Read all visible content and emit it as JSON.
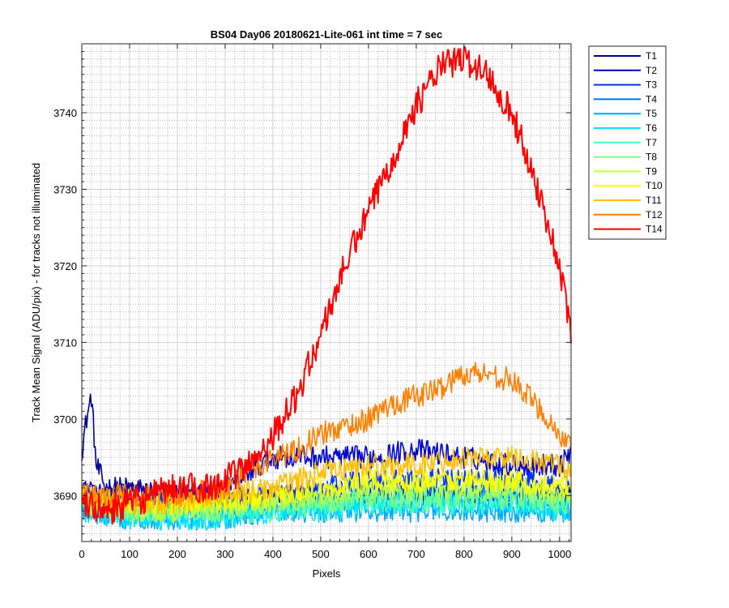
{
  "chart_data": {
    "type": "line",
    "title": "BS04 Day06 20180621-Lite-061 int time = 7 sec",
    "xlabel": "Pixels",
    "ylabel": "Track Mean Signal (ADU/pix) - for tracks not illuminated",
    "xlim": [
      0,
      1024
    ],
    "ylim": [
      3684,
      3749
    ],
    "x_ticks": [
      0,
      100,
      200,
      300,
      400,
      500,
      600,
      700,
      800,
      900,
      1000
    ],
    "y_ticks": [
      3690,
      3700,
      3710,
      3720,
      3730,
      3740
    ],
    "grid": "on (major + minor)",
    "legend_position": "outside-right",
    "series": [
      {
        "name": "T1",
        "color": "#00008F",
        "x": [
          0,
          10,
          20,
          30,
          50,
          100,
          200,
          300,
          400,
          500,
          600,
          700,
          800,
          900,
          1000,
          1024
        ],
        "y": [
          3696,
          3700,
          3703,
          3694,
          3691,
          3691,
          3690,
          3690,
          3690,
          3690,
          3690,
          3690,
          3690,
          3690,
          3690,
          3690
        ]
      },
      {
        "name": "T2",
        "color": "#0000CC",
        "x": [
          0,
          50,
          100,
          200,
          300,
          350,
          400,
          500,
          600,
          700,
          800,
          900,
          1000,
          1024
        ],
        "y": [
          3691,
          3690,
          3690,
          3690,
          3691,
          3693,
          3695,
          3695,
          3695,
          3696,
          3695,
          3694,
          3694,
          3696
        ]
      },
      {
        "name": "T3",
        "color": "#0033FF",
        "x": [
          0,
          100,
          200,
          300,
          400,
          500,
          600,
          700,
          800,
          900,
          1000,
          1024
        ],
        "y": [
          3690,
          3689,
          3689,
          3689,
          3690,
          3691,
          3692,
          3692,
          3692,
          3692,
          3691,
          3691
        ]
      },
      {
        "name": "T4",
        "color": "#0070FF",
        "x": [
          0,
          100,
          200,
          300,
          400,
          500,
          600,
          700,
          800,
          900,
          1000,
          1024
        ],
        "y": [
          3689,
          3688,
          3688,
          3688,
          3689,
          3689,
          3690,
          3690,
          3690,
          3690,
          3689,
          3689
        ]
      },
      {
        "name": "T5",
        "color": "#00AAFF",
        "x": [
          0,
          100,
          200,
          300,
          400,
          500,
          600,
          700,
          800,
          900,
          1000,
          1024
        ],
        "y": [
          3688,
          3687,
          3687,
          3687,
          3688,
          3688,
          3688,
          3688,
          3688,
          3688,
          3688,
          3688
        ]
      },
      {
        "name": "T6",
        "color": "#00E5FF",
        "x": [
          0,
          100,
          200,
          300,
          400,
          500,
          600,
          700,
          800,
          900,
          1000,
          1024
        ],
        "y": [
          3688,
          3687,
          3687,
          3687,
          3688,
          3688,
          3689,
          3689,
          3689,
          3689,
          3688,
          3688
        ]
      },
      {
        "name": "T7",
        "color": "#40FFBF",
        "x": [
          0,
          100,
          200,
          300,
          400,
          500,
          600,
          700,
          800,
          900,
          1000,
          1024
        ],
        "y": [
          3689,
          3688,
          3688,
          3688,
          3688,
          3689,
          3689,
          3689,
          3689,
          3689,
          3689,
          3689
        ]
      },
      {
        "name": "T8",
        "color": "#80FF80",
        "x": [
          0,
          100,
          200,
          300,
          400,
          500,
          600,
          700,
          800,
          900,
          1000,
          1024
        ],
        "y": [
          3689,
          3688,
          3688,
          3688,
          3689,
          3689,
          3690,
          3690,
          3690,
          3690,
          3689,
          3689
        ]
      },
      {
        "name": "T9",
        "color": "#BFFF40",
        "x": [
          0,
          100,
          200,
          300,
          400,
          500,
          600,
          700,
          800,
          900,
          1000,
          1024
        ],
        "y": [
          3689,
          3688,
          3688,
          3689,
          3689,
          3690,
          3691,
          3691,
          3691,
          3691,
          3690,
          3690
        ]
      },
      {
        "name": "T10",
        "color": "#FFFF00",
        "x": [
          0,
          100,
          200,
          300,
          400,
          500,
          600,
          700,
          800,
          900,
          1000,
          1024
        ],
        "y": [
          3690,
          3689,
          3689,
          3689,
          3690,
          3691,
          3692,
          3692,
          3692,
          3692,
          3691,
          3691
        ]
      },
      {
        "name": "T11",
        "color": "#FFBF00",
        "x": [
          0,
          100,
          200,
          300,
          400,
          500,
          600,
          700,
          800,
          900,
          1000,
          1024
        ],
        "y": [
          3690,
          3689,
          3689,
          3690,
          3691,
          3693,
          3694,
          3694,
          3695,
          3695,
          3694,
          3693
        ]
      },
      {
        "name": "T12",
        "color": "#FF8000",
        "x": [
          0,
          100,
          200,
          300,
          350,
          400,
          450,
          500,
          550,
          600,
          650,
          700,
          750,
          800,
          850,
          900,
          950,
          1000,
          1024
        ],
        "y": [
          3690,
          3690,
          3690,
          3691,
          3693,
          3695,
          3696,
          3698,
          3699,
          3700,
          3702,
          3703,
          3704,
          3706,
          3706,
          3705,
          3702,
          3698,
          3696
        ]
      },
      {
        "name": "T14",
        "color": "#FF0000",
        "x": [
          0,
          50,
          100,
          150,
          200,
          250,
          300,
          350,
          400,
          450,
          500,
          550,
          600,
          650,
          700,
          750,
          800,
          850,
          900,
          950,
          1000,
          1024
        ],
        "y": [
          3689,
          3688,
          3689,
          3690,
          3691,
          3691,
          3692,
          3694,
          3698,
          3703,
          3711,
          3720,
          3727,
          3734,
          3741,
          3746,
          3747,
          3745,
          3740,
          3731,
          3720,
          3711
        ]
      }
    ]
  }
}
